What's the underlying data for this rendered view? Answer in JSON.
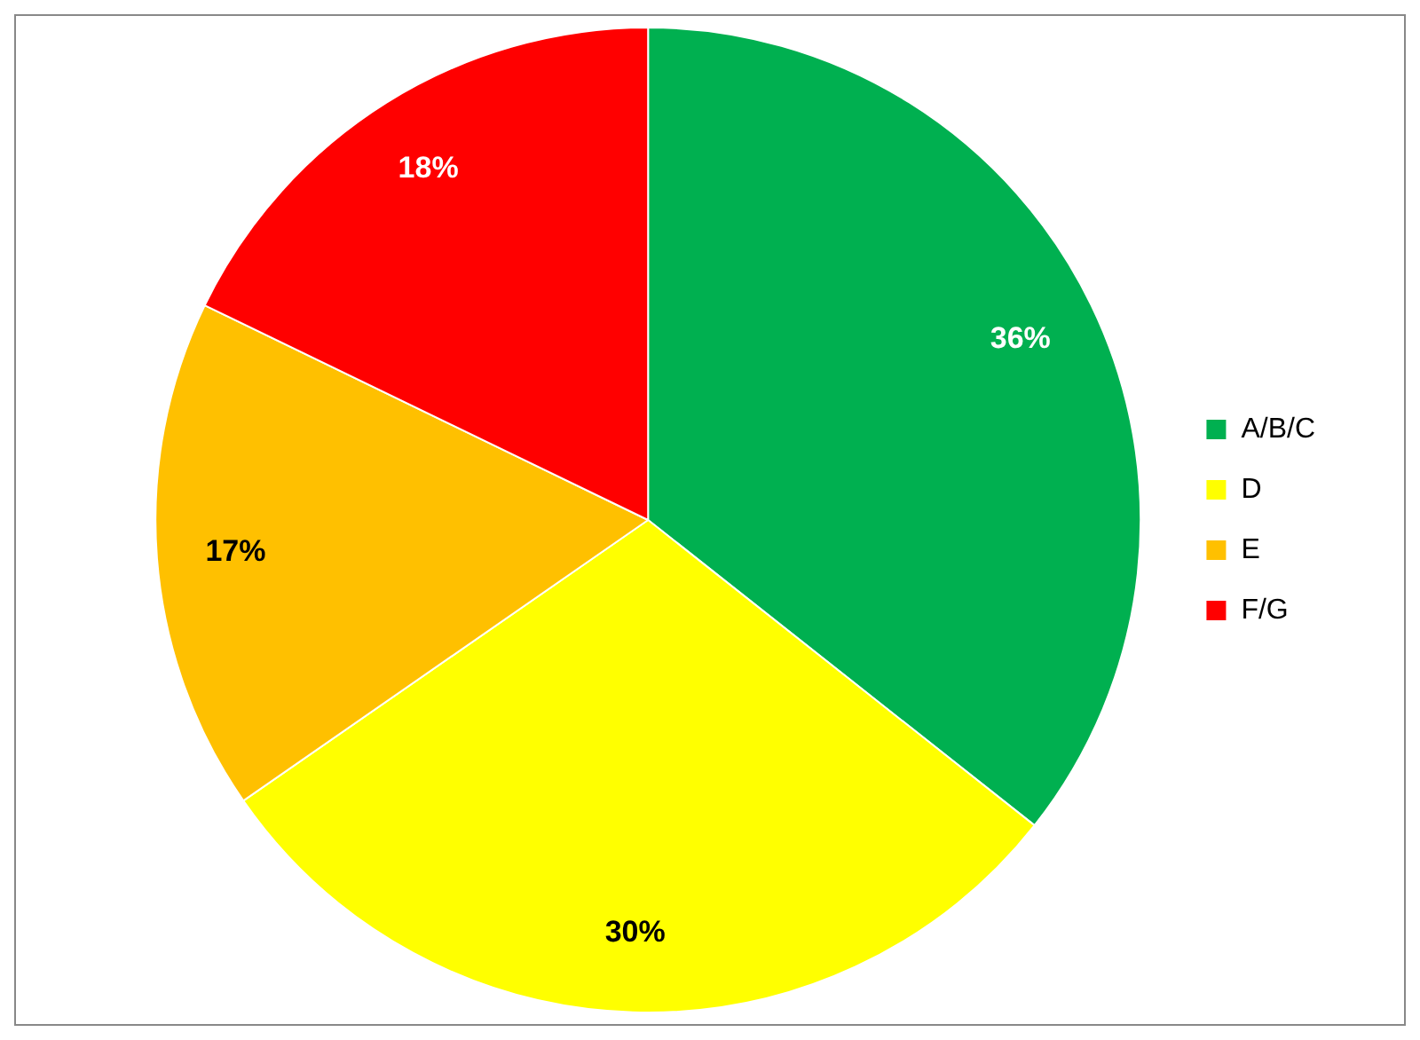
{
  "chart_data": {
    "type": "pie",
    "categories": [
      "A/B/C",
      "D",
      "E",
      "F/G"
    ],
    "values": [
      36,
      30,
      17,
      18
    ],
    "colors": [
      "#00b050",
      "#ffff00",
      "#ffc000",
      "#ff0000"
    ],
    "value_labels": [
      "36%",
      "30%",
      "17%",
      "18%"
    ],
    "legend": "right"
  }
}
